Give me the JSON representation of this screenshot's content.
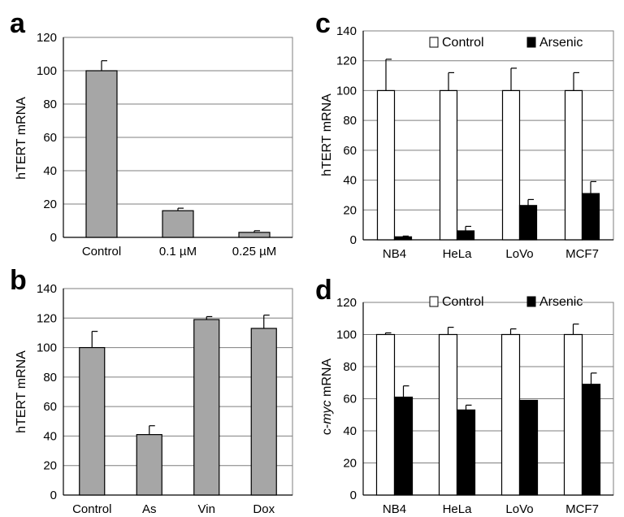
{
  "chart_data": [
    {
      "panel": "a",
      "type": "bar",
      "ylabel": "hTERT mRNA",
      "ylim": [
        0,
        120
      ],
      "yticks": [
        0,
        20,
        40,
        60,
        80,
        100,
        120
      ],
      "grid": true,
      "categories": [
        "Control",
        "0.1 µM",
        "0.25 µM"
      ],
      "series": [
        {
          "values": [
            100,
            16,
            3
          ],
          "errors": [
            6,
            1.5,
            1
          ],
          "color": "#a6a6a6"
        }
      ]
    },
    {
      "panel": "b",
      "type": "bar",
      "ylabel": "hTERT mRNA",
      "ylim": [
        0,
        140
      ],
      "yticks": [
        0,
        20,
        40,
        60,
        80,
        100,
        120,
        140
      ],
      "grid": true,
      "categories": [
        "Control",
        "As",
        "Vin",
        "Dox"
      ],
      "series": [
        {
          "values": [
            100,
            41,
            119,
            113
          ],
          "errors": [
            11,
            6,
            2,
            9
          ],
          "color": "#a6a6a6"
        }
      ]
    },
    {
      "panel": "c",
      "type": "bar",
      "ylabel": "hTERT mRNA",
      "ylim": [
        0,
        140
      ],
      "yticks": [
        0,
        20,
        40,
        60,
        80,
        100,
        120,
        140
      ],
      "grid": true,
      "legend": "top",
      "categories": [
        "NB4",
        "HeLa",
        "LoVo",
        "MCF7"
      ],
      "series": [
        {
          "name": "Control",
          "values": [
            100,
            100,
            100,
            100
          ],
          "errors": [
            21,
            12,
            15,
            12
          ],
          "color": "#ffffff"
        },
        {
          "name": "Arsenic",
          "values": [
            2,
            6,
            23,
            31
          ],
          "errors": [
            0.5,
            3,
            4,
            8
          ],
          "color": "#000000"
        }
      ]
    },
    {
      "panel": "d",
      "type": "bar",
      "ylabel_prefix": "c-",
      "ylabel_italic": "myc",
      "ylabel_suffix": " mRNA",
      "ylim": [
        0,
        120
      ],
      "yticks": [
        0,
        20,
        40,
        60,
        80,
        100,
        120
      ],
      "grid": true,
      "legend": "top",
      "categories": [
        "NB4",
        "HeLa",
        "LoVo",
        "MCF7"
      ],
      "series": [
        {
          "name": "Control",
          "values": [
            100,
            100,
            100,
            100
          ],
          "errors": [
            1,
            4.5,
            3.5,
            6.5
          ],
          "color": "#ffffff"
        },
        {
          "name": "Arsenic",
          "values": [
            61,
            53,
            59,
            69
          ],
          "errors": [
            7,
            3,
            0,
            7
          ],
          "color": "#000000"
        }
      ]
    }
  ]
}
